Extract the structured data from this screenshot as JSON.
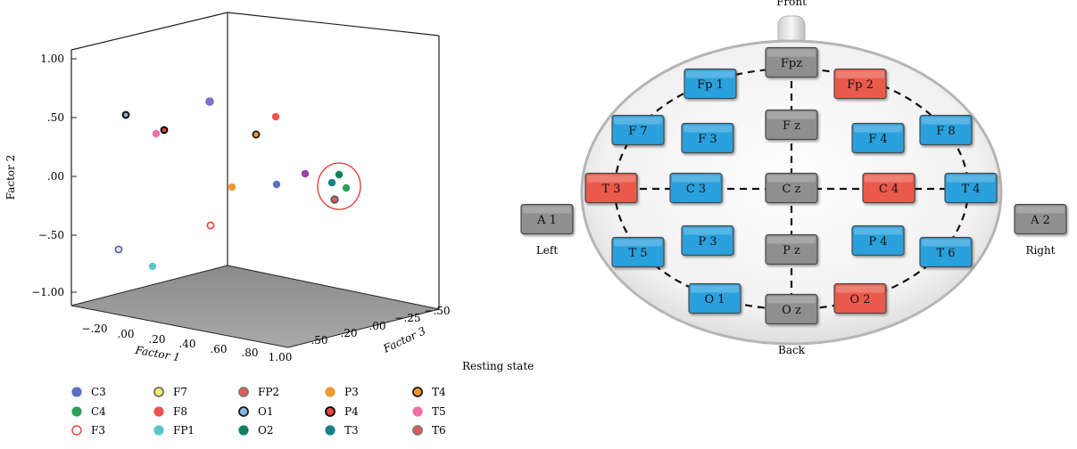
{
  "chart_data": {
    "type": "scatter",
    "projection": "3d",
    "x_label": "Factor 1",
    "y_label": "Factor 2",
    "z_label": "Factor 3",
    "x_ticks": [
      "−.20",
      ".00",
      ".20",
      ".40",
      ".60",
      ".80",
      "1.00"
    ],
    "y_ticks": [
      "1.00",
      ".50",
      ".00",
      "−.50",
      "−1.00"
    ],
    "z_ticks": [
      ".50",
      ".20",
      ".00",
      "−.25",
      "−.50"
    ],
    "caption": "Resting state",
    "annotation": "O2 / T3 / T6 / C4 cluster circled",
    "series": [
      {
        "name": "C3",
        "fill": "#5b6fc2",
        "stroke": "#5b6fc2"
      },
      {
        "name": "C4",
        "fill": "#2ea05a",
        "stroke": "#2ea05a"
      },
      {
        "name": "F3",
        "fill": "#ffffff",
        "stroke": "#e8413a"
      },
      {
        "name": "F7",
        "fill": "#f2ef6b",
        "stroke": "#6f6f6f"
      },
      {
        "name": "F8",
        "fill": "#ef5350",
        "stroke": "#ef5350"
      },
      {
        "name": "FP1",
        "fill": "#57c7c7",
        "stroke": "#57c7c7"
      },
      {
        "name": "FP2",
        "fill": "#e55a57",
        "stroke": "#7a7a7a"
      },
      {
        "name": "O1",
        "fill": "#7fb6e6",
        "stroke": "#1a1a1a"
      },
      {
        "name": "O2",
        "fill": "#118060",
        "stroke": "#118060"
      },
      {
        "name": "P3",
        "fill": "#f19833",
        "stroke": "#f19833"
      },
      {
        "name": "P4",
        "fill": "#e8413a",
        "stroke": "#000000"
      },
      {
        "name": "T3",
        "fill": "#178286",
        "stroke": "#178286"
      },
      {
        "name": "T4",
        "fill": "#f19833",
        "stroke": "#1a1a1a"
      },
      {
        "name": "T5",
        "fill": "#ef6fa6",
        "stroke": "#ef6fa6"
      },
      {
        "name": "T6",
        "fill": "#e55a57",
        "stroke": "#7a7a7a"
      }
    ]
  },
  "eeg_map": {
    "front_label": "Front",
    "back_label": "Back",
    "left_label": "Left",
    "right_label": "Right",
    "colors": {
      "blue": "#2aa0dd",
      "gray": "#8f8f8f",
      "red": "#ea5a4b"
    },
    "electrodes": [
      {
        "label": "Fpz",
        "color": "gray"
      },
      {
        "label": "Fp 1",
        "color": "blue"
      },
      {
        "label": "Fp 2",
        "color": "red"
      },
      {
        "label": "F 7",
        "color": "blue"
      },
      {
        "label": "F 3",
        "color": "blue"
      },
      {
        "label": "F z",
        "color": "gray"
      },
      {
        "label": "F 4",
        "color": "blue"
      },
      {
        "label": "F 8",
        "color": "blue"
      },
      {
        "label": "T 3",
        "color": "red"
      },
      {
        "label": "C 3",
        "color": "blue"
      },
      {
        "label": "C z",
        "color": "gray"
      },
      {
        "label": "C 4",
        "color": "red"
      },
      {
        "label": "T 4",
        "color": "blue"
      },
      {
        "label": "T 5",
        "color": "blue"
      },
      {
        "label": "P 3",
        "color": "blue"
      },
      {
        "label": "P z",
        "color": "gray"
      },
      {
        "label": "P 4",
        "color": "blue"
      },
      {
        "label": "T 6",
        "color": "blue"
      },
      {
        "label": "O 1",
        "color": "blue"
      },
      {
        "label": "O z",
        "color": "gray"
      },
      {
        "label": "O 2",
        "color": "red"
      },
      {
        "label": "A 1",
        "color": "gray"
      },
      {
        "label": "A 2",
        "color": "gray"
      }
    ]
  }
}
